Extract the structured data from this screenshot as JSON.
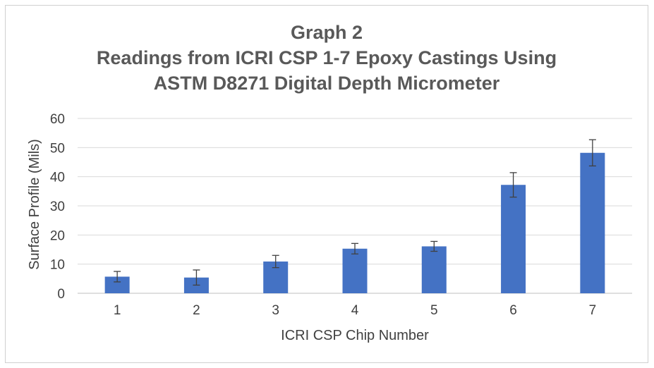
{
  "chart_data": {
    "type": "bar",
    "title_lines": [
      "Graph 2",
      "Readings from ICRI CSP 1-7 Epoxy Castings Using",
      "ASTM D8271 Digital Depth Micrometer"
    ],
    "xlabel": "ICRI CSP Chip Number",
    "ylabel": "Surface Profile (Mils)",
    "categories": [
      "1",
      "2",
      "3",
      "4",
      "5",
      "6",
      "7"
    ],
    "values": [
      5.7,
      5.4,
      10.9,
      15.3,
      16.1,
      37.2,
      48.2
    ],
    "error_bars": [
      1.8,
      2.6,
      2.1,
      1.8,
      1.7,
      4.2,
      4.5
    ],
    "ylim": [
      0,
      60
    ],
    "yticks": [
      "0",
      "10",
      "20",
      "30",
      "40",
      "50",
      "60"
    ],
    "grid": true,
    "legend": "none",
    "colors": {
      "bar": "#4472C4",
      "grid": "#d9d9d9",
      "text": "#595959"
    }
  }
}
